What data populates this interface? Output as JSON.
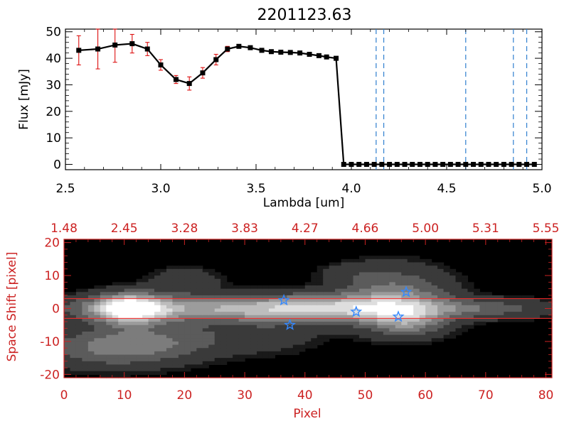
{
  "colors": {
    "axis_black": "#000000",
    "axis_red": "#cc2222",
    "errorbar": "#dd1111",
    "vline": "#2f7fcf",
    "star": "#3388ff",
    "shift_line": "#ff2a2a"
  },
  "chart_data": [
    {
      "type": "line",
      "title": "2201123.63",
      "xlabel": "Lambda [um]",
      "ylabel": "Flux [mJy]",
      "xlim": [
        2.5,
        5.0
      ],
      "ylim": [
        -2,
        51
      ],
      "xticks": [
        2.5,
        3.0,
        3.5,
        4.0,
        4.5,
        5.0
      ],
      "xtick_labels": [
        "2.5",
        "3.0",
        "3.5",
        "4.0",
        "4.5",
        "5.0"
      ],
      "yticks": [
        0,
        10,
        20,
        30,
        40,
        50
      ],
      "ytick_labels": [
        "0",
        "10",
        "20",
        "30",
        "40",
        "50"
      ],
      "grid": false,
      "series": [
        {
          "x": [
            2.57,
            2.67,
            2.76,
            2.85,
            2.93,
            3.0,
            3.08,
            3.15,
            3.22,
            3.29,
            3.35,
            3.41,
            3.47,
            3.53,
            3.58,
            3.63,
            3.68,
            3.73,
            3.78,
            3.83,
            3.87,
            3.92,
            3.96,
            4.0,
            4.04,
            4.08,
            4.12,
            4.16,
            4.2,
            4.24,
            4.28,
            4.32,
            4.36,
            4.4,
            4.44,
            4.48,
            4.52,
            4.56,
            4.6,
            4.64,
            4.68,
            4.72,
            4.76,
            4.8,
            4.84,
            4.88,
            4.92,
            4.96
          ],
          "y": [
            43.0,
            43.5,
            45.0,
            45.5,
            43.5,
            37.5,
            32.0,
            30.5,
            34.5,
            39.5,
            43.5,
            44.5,
            44.0,
            43.0,
            42.5,
            42.3,
            42.2,
            42.0,
            41.5,
            41.0,
            40.5,
            40.0,
            0,
            0,
            0,
            0,
            0,
            0,
            0,
            0,
            0,
            0,
            0,
            0,
            0,
            0,
            0,
            0,
            0,
            0,
            0,
            0,
            0,
            0,
            0,
            0,
            0,
            0
          ],
          "yerr": [
            5.5,
            7.5,
            6.5,
            3.5,
            2.5,
            2.0,
            1.5,
            2.5,
            2.0,
            2.0,
            1.0,
            0,
            0,
            0,
            0,
            0,
            0,
            0,
            0,
            0,
            0,
            0,
            0,
            0,
            0,
            0,
            0,
            0,
            0,
            0,
            0,
            0,
            0,
            0,
            0,
            0,
            0,
            0,
            0,
            0,
            0,
            0,
            0,
            0,
            0,
            0,
            0,
            0
          ]
        }
      ],
      "vlines": [
        4.13,
        4.17,
        4.6,
        4.85,
        4.92
      ]
    },
    {
      "type": "heatmap",
      "xlabel": "Pixel",
      "ylabel": "Space Shift [pixel]",
      "xlim": [
        0,
        81
      ],
      "ylim": [
        -21,
        21
      ],
      "xticks": [
        0,
        10,
        20,
        30,
        40,
        50,
        60,
        70,
        80
      ],
      "xtick_labels": [
        "0",
        "10",
        "20",
        "30",
        "40",
        "50",
        "60",
        "70",
        "80"
      ],
      "yticks": [
        -20,
        -10,
        0,
        10,
        20
      ],
      "ytick_labels": [
        "-20",
        "-10",
        "0",
        "10",
        "20"
      ],
      "top_tick_labels": [
        "1.48",
        "2.45",
        "3.28",
        "3.83",
        "4.27",
        "4.66",
        "5.00",
        "5.31",
        "5.55"
      ],
      "shift_lines": [
        3,
        -3
      ],
      "markers": [
        {
          "x": 36.5,
          "y": 2.5
        },
        {
          "x": 37.5,
          "y": -5
        },
        {
          "x": 48.5,
          "y": -1
        },
        {
          "x": 55.5,
          "y": -2.5
        },
        {
          "x": 56.8,
          "y": 5
        }
      ],
      "blobs": [
        {
          "x": 11,
          "y": 0,
          "sx": 4,
          "sy": 3,
          "a": 1.0
        },
        {
          "x": 26,
          "y": 0,
          "sx": 18,
          "sy": 2.5,
          "a": 0.55
        },
        {
          "x": 44,
          "y": 0,
          "sx": 10,
          "sy": 3,
          "a": 0.45
        },
        {
          "x": 55,
          "y": 3,
          "sx": 6,
          "sy": 6,
          "a": 0.45
        },
        {
          "x": 57,
          "y": -4,
          "sx": 4,
          "sy": 3,
          "a": 0.35
        },
        {
          "x": 68,
          "y": 0,
          "sx": 10,
          "sy": 2,
          "a": 0.28
        },
        {
          "x": 8,
          "y": -12,
          "sx": 8,
          "sy": 4,
          "a": 0.38
        },
        {
          "x": 18,
          "y": -9,
          "sx": 8,
          "sy": 4,
          "a": 0.22
        },
        {
          "x": 20,
          "y": 8,
          "sx": 4,
          "sy": 3,
          "a": 0.18
        },
        {
          "x": 34,
          "y": -8,
          "sx": 6,
          "sy": 4,
          "a": 0.12
        },
        {
          "x": 48,
          "y": 11,
          "sx": 4,
          "sy": 2,
          "a": 0.1
        }
      ]
    }
  ]
}
